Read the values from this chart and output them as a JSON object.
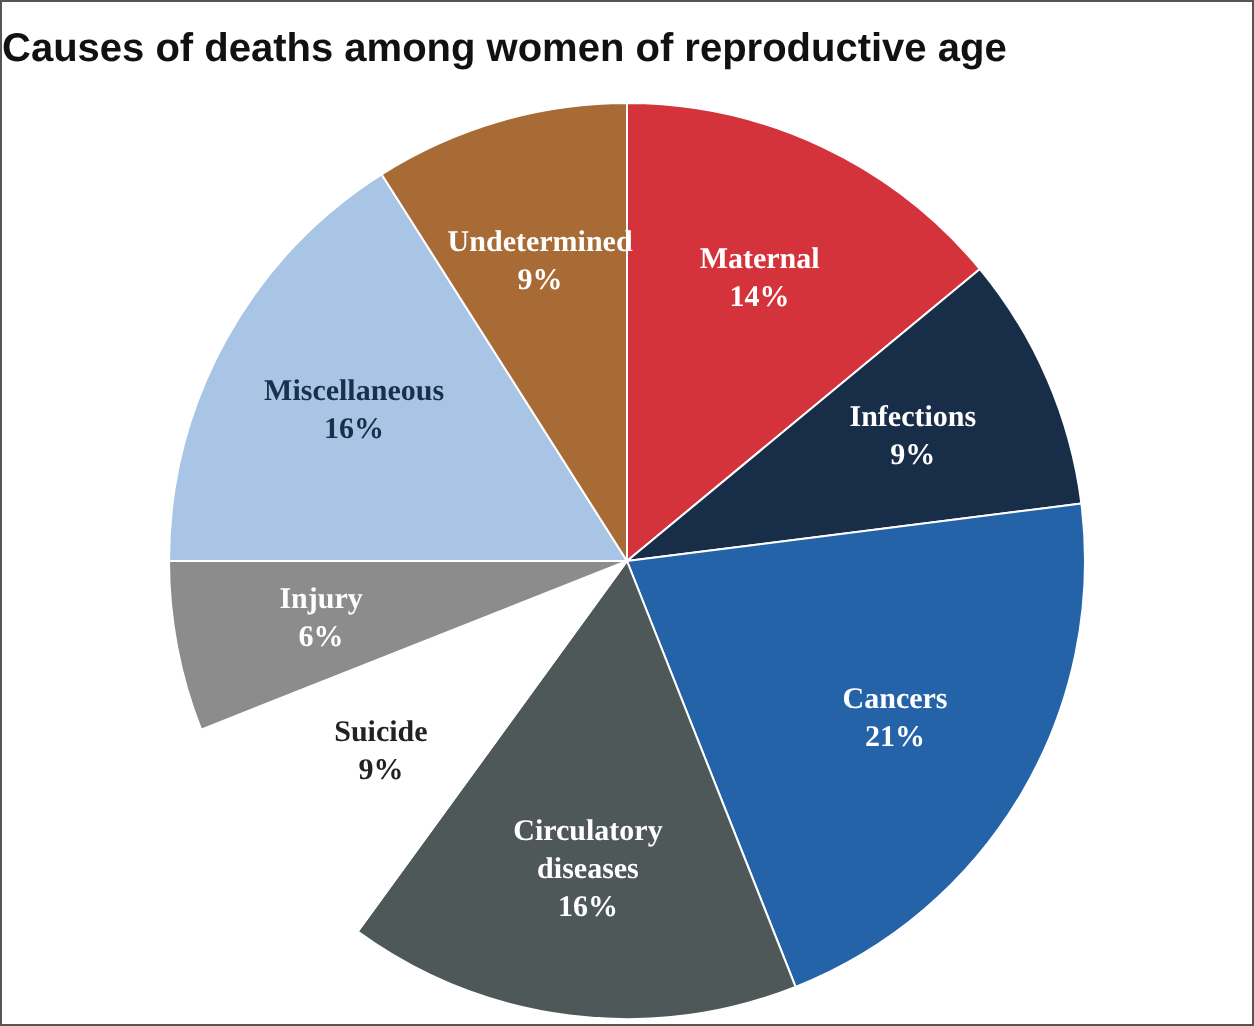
{
  "chart_data": {
    "type": "pie",
    "title": "Causes of deaths among women of reproductive age",
    "categories": [
      "Maternal",
      "Infections",
      "Cancers",
      "Circulatory diseases",
      "Suicide",
      "Injury",
      "Miscellaneous",
      "Undetermined"
    ],
    "values": [
      14,
      9,
      21,
      16,
      9,
      6,
      16,
      9
    ],
    "colors": [
      "#d5333b",
      "#182d48",
      "#2563a8",
      "#4f5858",
      "#ffffff",
      "#8c8c8c",
      "#a9c5e5",
      "#a86b35"
    ],
    "value_labels": [
      "14%",
      "9%",
      "21%",
      "16%",
      "9%",
      "6%",
      "16%",
      "9%"
    ],
    "legend": false
  }
}
